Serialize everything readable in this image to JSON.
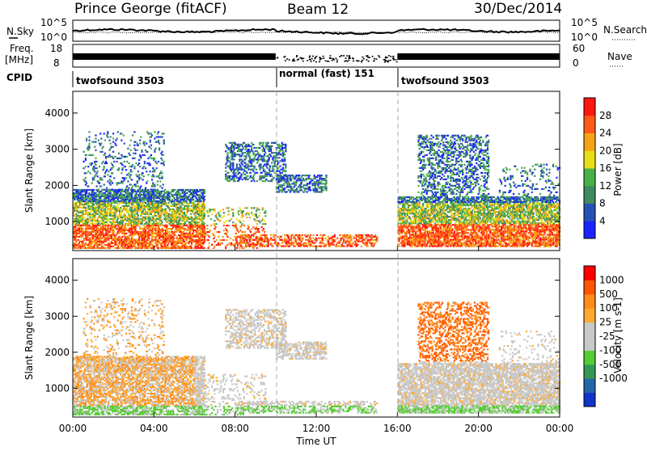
{
  "header": {
    "station": "Prince George (fitACF)",
    "beam": "Beam 12",
    "date": "30/Dec/2014"
  },
  "side_labels": {
    "nsky": "N.Sky",
    "freq_line1": "Freq.",
    "freq_line2": "[MHz]",
    "cpid": "CPID",
    "nsearch": "N.Search",
    "nave": "Nave"
  },
  "colors": {
    "power_scale": [
      "#1a22ff",
      "#2851b5",
      "#3f8a5e",
      "#49b14a",
      "#e8e014",
      "#f7a317",
      "#ff5a18",
      "#ff1810"
    ],
    "velocity_scale": [
      "#ff0000",
      "#ff5500",
      "#ff8c1a",
      "#ffaa33",
      "#c8c8c8",
      "#c8c8c8",
      "#55cc33",
      "#339955",
      "#2266aa",
      "#1133cc"
    ]
  },
  "chart_data": [
    {
      "type": "line",
      "name": "noise-sky-and-search",
      "ylabels": [
        "10^5",
        "10^0"
      ],
      "ylabels_right": [
        "10^5",
        "10^0"
      ]
    },
    {
      "type": "line",
      "name": "frequency-and-nave",
      "ylabel": "Freq. [MHz]",
      "yticks_left": [
        "18",
        "8"
      ],
      "yticks_right": [
        "60",
        "0"
      ]
    },
    {
      "type": "table",
      "name": "cpid",
      "segments": [
        {
          "label": "twofsound 3503",
          "start": 0,
          "end": 10
        },
        {
          "label": "normal (fast) 151",
          "start": 10,
          "end": 16
        },
        {
          "label": "twofsound 3503",
          "start": 16,
          "end": 24
        }
      ]
    },
    {
      "type": "heatmap",
      "name": "power",
      "ylabel": "Slant Range [km]",
      "yticks": [
        1000,
        2000,
        3000,
        4000
      ],
      "ylim": [
        200,
        4600
      ],
      "xlim": [
        0,
        24
      ],
      "colorbar_label": "Power [dB]",
      "colorbar_ticks": [
        "4",
        "8",
        "12",
        "16",
        "20",
        "24",
        "28"
      ],
      "colorbar_range": [
        0,
        32
      ]
    },
    {
      "type": "heatmap",
      "name": "velocity",
      "ylabel": "Slant Range [km]",
      "yticks": [
        1000,
        2000,
        3000,
        4000
      ],
      "ylim": [
        200,
        4600
      ],
      "xlim": [
        0,
        24
      ],
      "xticks": [
        "00:00",
        "04:00",
        "08:00",
        "12:00",
        "16:00",
        "20:00",
        "00:00"
      ],
      "xlabel": "Time UT",
      "colorbar_label": "Velocity [m s-1]",
      "colorbar_ticks": [
        "1000",
        "500",
        "100",
        "25",
        "-25",
        "-100",
        "-500",
        "-1000"
      ]
    }
  ]
}
